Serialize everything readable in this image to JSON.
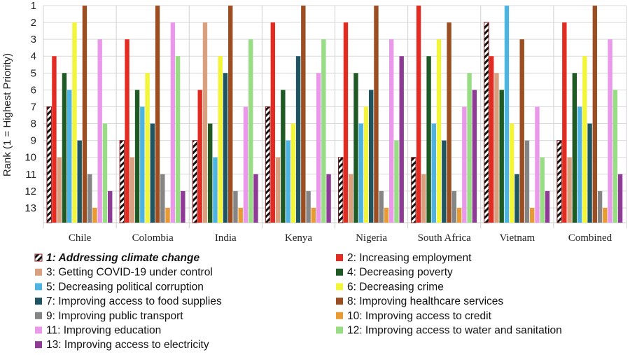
{
  "chart_data": {
    "type": "bar",
    "title": "",
    "xlabel": "",
    "ylabel": "Rank (1 = Highest Priority)",
    "ylim": [
      1,
      13
    ],
    "y_inverted": true,
    "y_ticks": [
      "1",
      "2",
      "3",
      "4",
      "5",
      "6",
      "7",
      "8",
      "9",
      "10",
      "11",
      "12",
      "13"
    ],
    "grid": true,
    "legend_position": "bottom",
    "categories": [
      "Chile",
      "Colombia",
      "India",
      "Kenya",
      "Nigeria",
      "South Africa",
      "Vietnam",
      "Combined"
    ],
    "series": [
      {
        "name": "1: Addressing climate change",
        "color": "#8b1a1a",
        "hatched": true,
        "emphasis": true,
        "values": [
          7,
          9,
          9,
          7,
          10,
          10,
          2,
          9
        ]
      },
      {
        "name": "2: Increasing employment",
        "color": "#e32b22",
        "values": [
          4,
          3,
          6,
          2,
          2,
          1,
          4,
          2
        ]
      },
      {
        "name": "3: Getting COVID-19 under control",
        "color": "#d9a07f",
        "values": [
          10,
          10,
          2,
          10,
          11,
          11,
          5,
          10
        ]
      },
      {
        "name": "4: Decreasing poverty",
        "color": "#1f5a25",
        "values": [
          5,
          6,
          8,
          6,
          5,
          4,
          6,
          5
        ]
      },
      {
        "name": "5: Decreasing political corruption",
        "color": "#4cb3e3",
        "values": [
          6,
          7,
          10,
          9,
          8,
          8,
          1,
          7
        ]
      },
      {
        "name": "6: Decreasing crime",
        "color": "#f2f53a",
        "values": [
          2,
          5,
          4,
          8,
          7,
          3,
          8,
          4
        ]
      },
      {
        "name": "7: Improving access to food supplies",
        "color": "#1f5560",
        "values": [
          9,
          8,
          5,
          4,
          6,
          9,
          11,
          8
        ]
      },
      {
        "name": "8: Improving healthcare services",
        "color": "#9a4e22",
        "values": [
          1,
          1,
          1,
          1,
          1,
          2,
          3,
          1
        ]
      },
      {
        "name": "9: Improving public transport",
        "color": "#858585",
        "values": [
          11,
          11,
          12,
          12,
          12,
          12,
          9,
          12
        ]
      },
      {
        "name": "10: Improving access to credit",
        "color": "#e99a32",
        "values": [
          13,
          13,
          13,
          13,
          13,
          13,
          13,
          13
        ]
      },
      {
        "name": "11: Improving education",
        "color": "#ea98ea",
        "values": [
          3,
          2,
          7,
          5,
          3,
          7,
          7,
          3
        ]
      },
      {
        "name": "12: Improving access to water and sanitation",
        "color": "#98dc84",
        "values": [
          8,
          4,
          3,
          3,
          9,
          5,
          10,
          6
        ]
      },
      {
        "name": "13: Improving access to electricity",
        "color": "#8e3a96",
        "values": [
          12,
          12,
          11,
          11,
          4,
          6,
          12,
          11
        ]
      }
    ]
  }
}
